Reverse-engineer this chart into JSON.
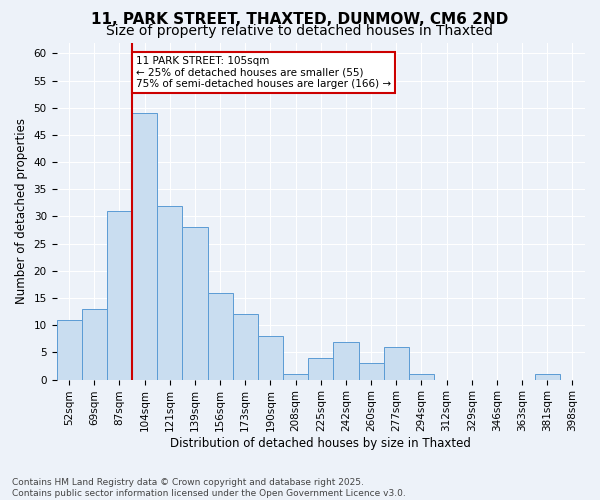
{
  "title": "11, PARK STREET, THAXTED, DUNMOW, CM6 2ND",
  "subtitle": "Size of property relative to detached houses in Thaxted",
  "xlabel": "Distribution of detached houses by size in Thaxted",
  "ylabel": "Number of detached properties",
  "categories": [
    "52sqm",
    "69sqm",
    "87sqm",
    "104sqm",
    "121sqm",
    "139sqm",
    "156sqm",
    "173sqm",
    "190sqm",
    "208sqm",
    "225sqm",
    "242sqm",
    "260sqm",
    "277sqm",
    "294sqm",
    "312sqm",
    "329sqm",
    "346sqm",
    "363sqm",
    "381sqm",
    "398sqm"
  ],
  "values": [
    11,
    13,
    31,
    49,
    32,
    28,
    16,
    12,
    8,
    1,
    4,
    7,
    3,
    6,
    1,
    0,
    0,
    0,
    0,
    1,
    0
  ],
  "bar_color": "#c9ddf0",
  "bar_edge_color": "#5b9bd5",
  "property_line_x": 3,
  "annotation_text": "11 PARK STREET: 105sqm\n← 25% of detached houses are smaller (55)\n75% of semi-detached houses are larger (166) →",
  "annotation_box_color": "#ffffff",
  "annotation_box_edge_color": "#cc0000",
  "red_line_color": "#cc0000",
  "ylim": [
    0,
    62
  ],
  "yticks": [
    0,
    5,
    10,
    15,
    20,
    25,
    30,
    35,
    40,
    45,
    50,
    55,
    60
  ],
  "background_color": "#edf2f9",
  "footer": "Contains HM Land Registry data © Crown copyright and database right 2025.\nContains public sector information licensed under the Open Government Licence v3.0.",
  "title_fontsize": 11,
  "xlabel_fontsize": 8.5,
  "ylabel_fontsize": 8.5,
  "tick_fontsize": 7.5,
  "footer_fontsize": 6.5,
  "annot_fontsize": 7.5
}
